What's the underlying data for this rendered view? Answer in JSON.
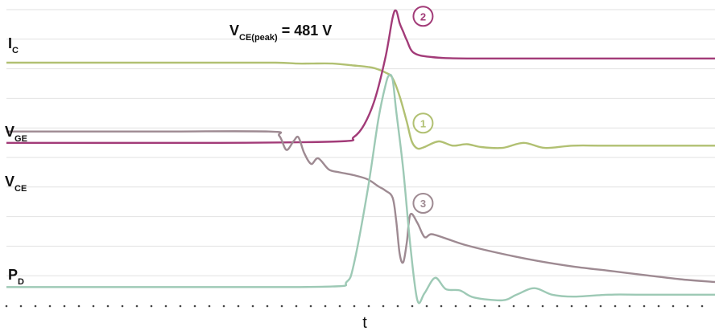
{
  "chart_data": {
    "type": "line",
    "title": "",
    "xlabel": "t",
    "ylabel": "",
    "annotation": {
      "prefix": "V",
      "subscript": "CE(peak)",
      "suffix": " = 481 V"
    },
    "grid": "horizontal",
    "series": [
      {
        "name": "I",
        "subscript": "C",
        "marker": "1",
        "color": "#b1c072",
        "points": [
          [
            0,
            0.8
          ],
          [
            0.15,
            0.8
          ],
          [
            0.3,
            0.8
          ],
          [
            0.38,
            0.8
          ],
          [
            0.41,
            0.797
          ],
          [
            0.43,
            0.797
          ],
          [
            0.46,
            0.797
          ],
          [
            0.49,
            0.79
          ],
          [
            0.51,
            0.785
          ],
          [
            0.52,
            0.78
          ],
          [
            0.535,
            0.765
          ],
          [
            0.545,
            0.745
          ],
          [
            0.555,
            0.68
          ],
          [
            0.565,
            0.59
          ],
          [
            0.572,
            0.52
          ],
          [
            0.58,
            0.495
          ],
          [
            0.59,
            0.5
          ],
          [
            0.61,
            0.52
          ],
          [
            0.63,
            0.505
          ],
          [
            0.65,
            0.51
          ],
          [
            0.67,
            0.5
          ],
          [
            0.7,
            0.497
          ],
          [
            0.73,
            0.515
          ],
          [
            0.76,
            0.497
          ],
          [
            0.8,
            0.505
          ],
          [
            0.85,
            0.505
          ],
          [
            1.0,
            0.505
          ]
        ]
      },
      {
        "name": "V",
        "subscript": "CE",
        "marker": "2",
        "color": "#a23b78",
        "points": [
          [
            0,
            0.515
          ],
          [
            0.3,
            0.515
          ],
          [
            0.47,
            0.52
          ],
          [
            0.49,
            0.535
          ],
          [
            0.505,
            0.58
          ],
          [
            0.52,
            0.67
          ],
          [
            0.535,
            0.82
          ],
          [
            0.545,
            0.96
          ],
          [
            0.55,
            0.985
          ],
          [
            0.555,
            0.94
          ],
          [
            0.56,
            0.91
          ],
          [
            0.565,
            0.88
          ],
          [
            0.575,
            0.835
          ],
          [
            0.6,
            0.82
          ],
          [
            0.65,
            0.815
          ],
          [
            0.8,
            0.815
          ],
          [
            1.0,
            0.815
          ]
        ]
      },
      {
        "name": "V",
        "subscript": "GE",
        "marker": "3",
        "color": "#9e8a92",
        "points": [
          [
            0,
            0.555
          ],
          [
            0.2,
            0.555
          ],
          [
            0.37,
            0.555
          ],
          [
            0.385,
            0.54
          ],
          [
            0.395,
            0.49
          ],
          [
            0.405,
            0.52
          ],
          [
            0.412,
            0.535
          ],
          [
            0.42,
            0.48
          ],
          [
            0.43,
            0.44
          ],
          [
            0.44,
            0.46
          ],
          [
            0.455,
            0.42
          ],
          [
            0.47,
            0.41
          ],
          [
            0.49,
            0.4
          ],
          [
            0.51,
            0.385
          ],
          [
            0.525,
            0.36
          ],
          [
            0.535,
            0.345
          ],
          [
            0.545,
            0.32
          ],
          [
            0.55,
            0.24
          ],
          [
            0.555,
            0.12
          ],
          [
            0.56,
            0.09
          ],
          [
            0.565,
            0.16
          ],
          [
            0.57,
            0.26
          ],
          [
            0.58,
            0.23
          ],
          [
            0.59,
            0.18
          ],
          [
            0.6,
            0.19
          ],
          [
            0.62,
            0.175
          ],
          [
            0.65,
            0.15
          ],
          [
            0.7,
            0.12
          ],
          [
            0.75,
            0.095
          ],
          [
            0.8,
            0.075
          ],
          [
            0.85,
            0.06
          ],
          [
            0.9,
            0.045
          ],
          [
            0.95,
            0.03
          ],
          [
            1.0,
            0.02
          ]
        ]
      },
      {
        "name": "P",
        "subscript": "D",
        "color": "#9dc9b5",
        "points": [
          [
            0,
            0.002
          ],
          [
            0.3,
            0.002
          ],
          [
            0.46,
            0.004
          ],
          [
            0.48,
            0.02
          ],
          [
            0.49,
            0.08
          ],
          [
            0.51,
            0.35
          ],
          [
            0.525,
            0.6
          ],
          [
            0.535,
            0.72
          ],
          [
            0.54,
            0.755
          ],
          [
            0.545,
            0.74
          ],
          [
            0.55,
            0.63
          ],
          [
            0.56,
            0.42
          ],
          [
            0.57,
            0.15
          ],
          [
            0.58,
            -0.045
          ],
          [
            0.59,
            -0.02
          ],
          [
            0.605,
            0.035
          ],
          [
            0.62,
            -0.005
          ],
          [
            0.64,
            -0.01
          ],
          [
            0.66,
            -0.035
          ],
          [
            0.7,
            -0.045
          ],
          [
            0.72,
            -0.025
          ],
          [
            0.745,
            -0.002
          ],
          [
            0.77,
            -0.025
          ],
          [
            0.8,
            -0.032
          ],
          [
            0.85,
            -0.025
          ],
          [
            0.9,
            -0.025
          ],
          [
            1.0,
            -0.025
          ]
        ]
      }
    ]
  }
}
